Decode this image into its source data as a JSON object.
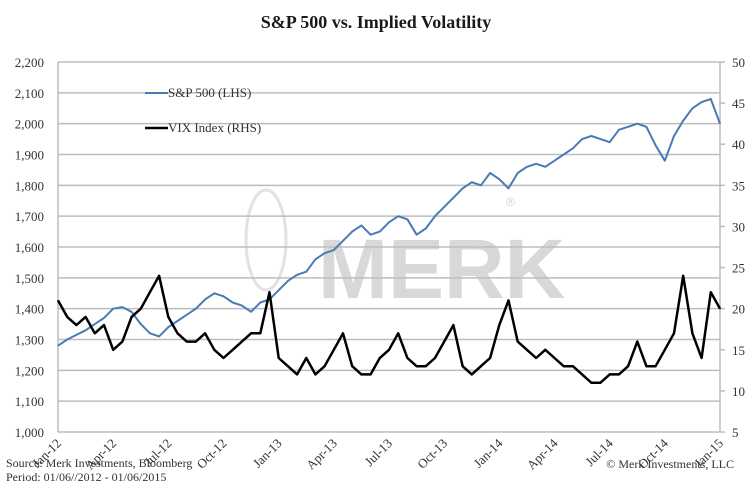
{
  "chart_data": {
    "type": "line",
    "title": "S&P 500 vs. Implied Volatility",
    "xlabel": "",
    "ylabel_left": "",
    "ylabel_right": "",
    "x_range": [
      "2012-01-06",
      "2015-01-06"
    ],
    "x_tick_labels": [
      "Jan-12",
      "Apr-12",
      "Jul-12",
      "Oct-12",
      "Jan-13",
      "Apr-13",
      "Jul-13",
      "Oct-13",
      "Jan-14",
      "Apr-14",
      "Jul-14",
      "Oct-14",
      "Jan-15"
    ],
    "y_left": {
      "range": [
        1000,
        2200
      ],
      "ticks": [
        1000,
        1100,
        1200,
        1300,
        1400,
        1500,
        1600,
        1700,
        1800,
        1900,
        2000,
        2100,
        2200
      ],
      "tick_labels": [
        "1,000",
        "1,100",
        "1,200",
        "1,300",
        "1,400",
        "1,500",
        "1,600",
        "1,700",
        "1,800",
        "1,900",
        "2,000",
        "2,100",
        "2,200"
      ]
    },
    "y_right": {
      "range": [
        5,
        50
      ],
      "ticks": [
        5,
        10,
        15,
        20,
        25,
        30,
        35,
        40,
        45,
        50
      ],
      "tick_labels": [
        "5",
        "10",
        "15",
        "20",
        "25",
        "30",
        "35",
        "40",
        "45",
        "50"
      ]
    },
    "grid": true,
    "legend": {
      "placement": "top-left"
    },
    "series": [
      {
        "name": "S&P 500 (LHS)",
        "axis": "left",
        "color": "#4a7ab5",
        "x_months": [
          0,
          0.5,
          1,
          1.5,
          2,
          2.5,
          3,
          3.5,
          4,
          4.5,
          5,
          5.5,
          6,
          6.5,
          7,
          7.5,
          8,
          8.5,
          9,
          9.5,
          10,
          10.5,
          11,
          11.5,
          12,
          12.5,
          13,
          13.5,
          14,
          14.5,
          15,
          15.5,
          16,
          16.5,
          17,
          17.5,
          18,
          18.5,
          19,
          19.5,
          20,
          20.5,
          21,
          21.5,
          22,
          22.5,
          23,
          23.5,
          24,
          24.5,
          25,
          25.5,
          26,
          26.5,
          27,
          27.5,
          28,
          28.5,
          29,
          29.5,
          30,
          30.5,
          31,
          31.5,
          32,
          32.5,
          33,
          33.5,
          34,
          34.5,
          35,
          35.5,
          36
        ],
        "values": [
          1280,
          1300,
          1315,
          1330,
          1350,
          1370,
          1400,
          1405,
          1390,
          1350,
          1320,
          1310,
          1340,
          1360,
          1380,
          1400,
          1430,
          1450,
          1440,
          1420,
          1410,
          1390,
          1420,
          1430,
          1460,
          1490,
          1510,
          1520,
          1560,
          1580,
          1590,
          1620,
          1650,
          1670,
          1640,
          1650,
          1680,
          1700,
          1690,
          1640,
          1660,
          1700,
          1730,
          1760,
          1790,
          1810,
          1800,
          1840,
          1820,
          1790,
          1840,
          1860,
          1870,
          1860,
          1880,
          1900,
          1920,
          1950,
          1960,
          1950,
          1940,
          1980,
          1990,
          2000,
          1990,
          1930,
          1880,
          1960,
          2010,
          2050,
          2070,
          2080,
          2000
        ]
      },
      {
        "name": "VIX Index (RHS)",
        "axis": "right",
        "color": "#000000",
        "x_months": [
          0,
          0.5,
          1,
          1.5,
          2,
          2.5,
          3,
          3.5,
          4,
          4.5,
          5,
          5.5,
          6,
          6.5,
          7,
          7.5,
          8,
          8.5,
          9,
          9.5,
          10,
          10.5,
          11,
          11.5,
          12,
          12.5,
          13,
          13.5,
          14,
          14.5,
          15,
          15.5,
          16,
          16.5,
          17,
          17.5,
          18,
          18.5,
          19,
          19.5,
          20,
          20.5,
          21,
          21.5,
          22,
          22.5,
          23,
          23.5,
          24,
          24.5,
          25,
          25.5,
          26,
          26.5,
          27,
          27.5,
          28,
          28.5,
          29,
          29.5,
          30,
          30.5,
          31,
          31.5,
          32,
          32.5,
          33,
          33.5,
          34,
          34.5,
          35,
          35.5,
          36
        ],
        "values": [
          21,
          19,
          18,
          19,
          17,
          18,
          15,
          16,
          19,
          20,
          22,
          24,
          19,
          17,
          16,
          16,
          17,
          15,
          14,
          15,
          16,
          17,
          17,
          22,
          14,
          13,
          12,
          14,
          12,
          13,
          15,
          17,
          13,
          12,
          12,
          14,
          15,
          17,
          14,
          13,
          13,
          14,
          16,
          18,
          13,
          12,
          13,
          14,
          18,
          21,
          16,
          15,
          14,
          15,
          14,
          13,
          13,
          12,
          11,
          11,
          12,
          12,
          13,
          16,
          13,
          13,
          15,
          17,
          24,
          17,
          14,
          22,
          20
        ]
      }
    ]
  },
  "legend_labels": [
    "S&P 500 (LHS)",
    "VIX Index (RHS)"
  ],
  "watermark": {
    "text": "MERK",
    "registered_mark": "®"
  },
  "footer": {
    "source": "Source: Merk Investments, Bloomberg",
    "period": "Period: 01/06//2012 - 01/06/2015",
    "copyright": "© Merk Investments, LLC"
  }
}
